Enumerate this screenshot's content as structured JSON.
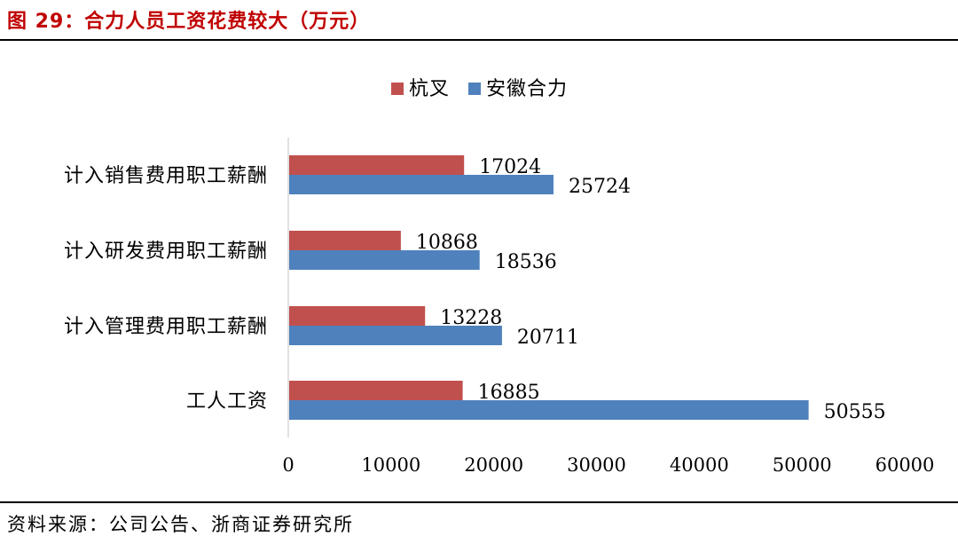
{
  "title": "图 29：合力人员工资花费较大（万元）",
  "source": "资料来源：公司公告、浙商证券研究所",
  "chart_data": {
    "type": "bar",
    "orientation": "horizontal",
    "categories": [
      "计入销售费用职工薪酬",
      "计入研发费用职工薪酬",
      "计入管理费用职工薪酬",
      "工人工资"
    ],
    "series": [
      {
        "name": "杭叉",
        "color": "#c0504d",
        "values": [
          17024,
          10868,
          13228,
          16885
        ]
      },
      {
        "name": "安徽合力",
        "color": "#4f81bd",
        "values": [
          25724,
          18536,
          20711,
          50555
        ]
      }
    ],
    "xlim": [
      0,
      60000
    ],
    "xticks": [
      0,
      10000,
      20000,
      30000,
      40000,
      50000,
      60000
    ],
    "grid": false,
    "legend_position": "top"
  }
}
